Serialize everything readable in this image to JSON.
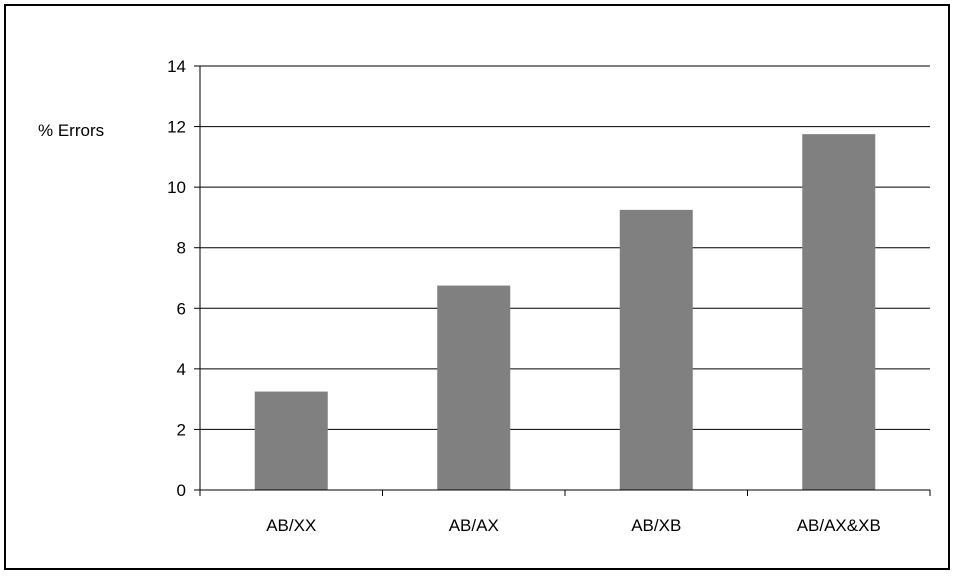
{
  "chart_data": {
    "type": "bar",
    "categories": [
      "AB/XX",
      "AB/AX",
      "AB/XB",
      "AB/AX&XB"
    ],
    "values": [
      3.25,
      6.75,
      9.25,
      11.75
    ],
    "ylabel": "% Errors",
    "ylim": [
      0,
      14
    ],
    "yticks": [
      0,
      2,
      4,
      6,
      8,
      10,
      12,
      14
    ],
    "grid": true,
    "colors": {
      "bar": "#808080",
      "grid": "#000000",
      "axis": "#000000"
    }
  }
}
